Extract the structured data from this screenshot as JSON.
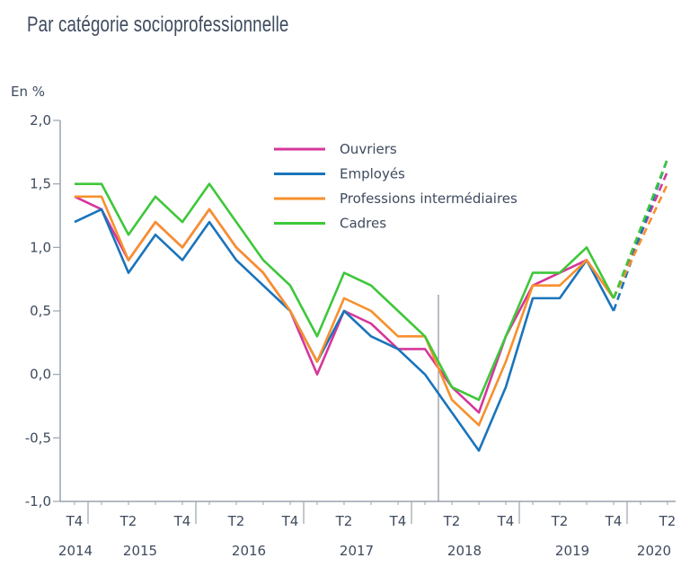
{
  "chart_data": {
    "type": "line",
    "title": "Par catégorie socioprofessionnelle",
    "ylabel": "En %",
    "ylim": [
      -1.0,
      2.0
    ],
    "yticks": [
      "2,0",
      "1,5",
      "1,0",
      "0,5",
      "0,0",
      "-0,5",
      "-1,0"
    ],
    "ytick_values": [
      2.0,
      1.5,
      1.0,
      0.5,
      0.0,
      -0.5,
      -1.0
    ],
    "x": [
      "2014 T4",
      "2015 T1",
      "2015 T2",
      "2015 T3",
      "2015 T4",
      "2016 T1",
      "2016 T2",
      "2016 T3",
      "2016 T4",
      "2017 T1",
      "2017 T2",
      "2017 T3",
      "2017 T4",
      "2018 T1",
      "2018 T2",
      "2018 T3",
      "2018 T4",
      "2019 T1",
      "2019 T2",
      "2019 T3",
      "2019 T4",
      "2020 T1",
      "2020 T2"
    ],
    "quarter_labels": [
      {
        "label": "T4",
        "index": 0
      },
      {
        "label": "T2",
        "index": 2
      },
      {
        "label": "T4",
        "index": 4
      },
      {
        "label": "T2",
        "index": 6
      },
      {
        "label": "T4",
        "index": 8
      },
      {
        "label": "T2",
        "index": 10
      },
      {
        "label": "T4",
        "index": 12
      },
      {
        "label": "T2",
        "index": 14
      },
      {
        "label": "T4",
        "index": 16
      },
      {
        "label": "T2",
        "index": 18
      },
      {
        "label": "T4",
        "index": 20
      },
      {
        "label": "T2",
        "index": 22
      }
    ],
    "year_labels": [
      "2014",
      "2015",
      "2016",
      "2017",
      "2018",
      "2019",
      "2020"
    ],
    "forecast_from_index": 20,
    "legend_position": "top-center",
    "grid": false,
    "series": [
      {
        "name": "Ouvriers",
        "color": "#d6369a",
        "values": [
          1.4,
          1.3,
          0.9,
          1.2,
          1.0,
          1.3,
          1.0,
          0.8,
          0.5,
          0.0,
          0.5,
          0.4,
          0.2,
          0.2,
          -0.1,
          -0.3,
          0.3,
          0.7,
          0.8,
          0.9,
          0.6,
          null,
          1.6
        ]
      },
      {
        "name": "Employés",
        "color": "#1a74bb",
        "values": [
          1.2,
          1.3,
          0.8,
          1.1,
          0.9,
          1.2,
          0.9,
          0.7,
          0.5,
          0.1,
          0.5,
          0.3,
          0.2,
          0.0,
          -0.3,
          -0.6,
          -0.1,
          0.6,
          0.6,
          0.9,
          0.5,
          null,
          1.7
        ]
      },
      {
        "name": "Professions intermédiaires",
        "color": "#f7902c",
        "values": [
          1.4,
          1.4,
          0.9,
          1.2,
          1.0,
          1.3,
          1.0,
          0.8,
          0.5,
          0.1,
          0.6,
          0.5,
          0.3,
          0.3,
          -0.2,
          -0.4,
          0.1,
          0.7,
          0.7,
          0.9,
          0.6,
          null,
          1.5
        ]
      },
      {
        "name": "Cadres",
        "color": "#3ec73a",
        "values": [
          1.5,
          1.5,
          1.1,
          1.4,
          1.2,
          1.5,
          1.2,
          0.9,
          0.7,
          0.3,
          0.8,
          0.7,
          0.5,
          0.3,
          -0.1,
          -0.2,
          0.3,
          0.8,
          0.8,
          1.0,
          0.6,
          null,
          1.7
        ]
      }
    ]
  }
}
